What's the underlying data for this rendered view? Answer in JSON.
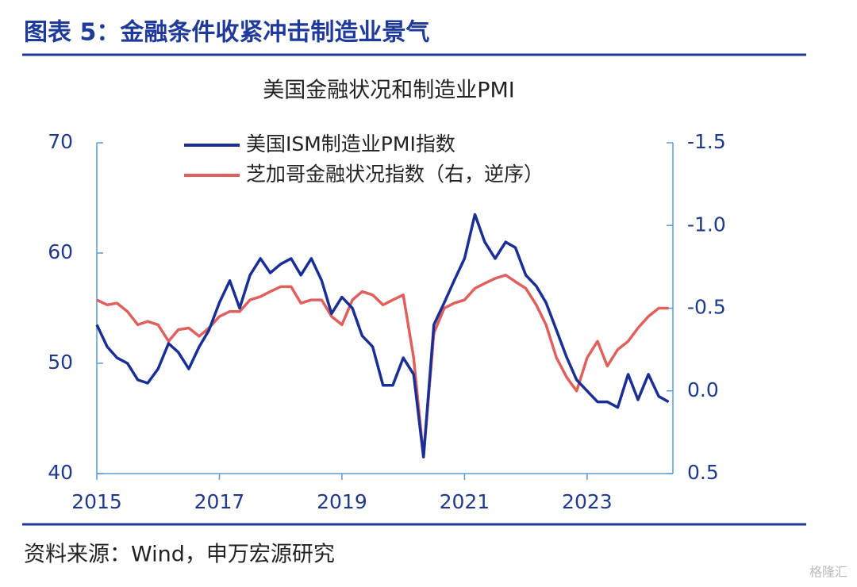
{
  "header": {
    "title": "图表 5：金融条件收紧冲击制造业景气"
  },
  "chart_data": {
    "type": "line",
    "title": "美国金融状况和制造业PMI",
    "x": [
      2015.0,
      2015.17,
      2015.33,
      2015.5,
      2015.67,
      2015.83,
      2016.0,
      2016.17,
      2016.33,
      2016.5,
      2016.67,
      2016.83,
      2017.0,
      2017.17,
      2017.33,
      2017.5,
      2017.67,
      2017.83,
      2018.0,
      2018.17,
      2018.33,
      2018.5,
      2018.67,
      2018.83,
      2019.0,
      2019.17,
      2019.33,
      2019.5,
      2019.67,
      2019.83,
      2020.0,
      2020.17,
      2020.33,
      2020.5,
      2020.67,
      2020.83,
      2021.0,
      2021.17,
      2021.33,
      2021.5,
      2021.67,
      2021.83,
      2022.0,
      2022.17,
      2022.33,
      2022.5,
      2022.67,
      2022.83,
      2023.0,
      2023.17,
      2023.33,
      2023.5,
      2023.67,
      2023.83,
      2024.0,
      2024.17,
      2024.33
    ],
    "series": [
      {
        "name": "美国ISM制造业PMI指数",
        "color": "#1a2f96",
        "axis": "y",
        "values": [
          53.5,
          51.5,
          50.5,
          50.0,
          48.5,
          48.2,
          49.5,
          51.8,
          51.0,
          49.5,
          51.5,
          53.0,
          55.5,
          57.5,
          55.0,
          58.0,
          59.5,
          58.2,
          59.0,
          59.5,
          58.0,
          59.5,
          57.5,
          54.5,
          56.0,
          55.0,
          52.5,
          51.5,
          48.0,
          48.0,
          50.5,
          49.0,
          41.5,
          53.5,
          55.5,
          57.5,
          59.5,
          63.5,
          61.0,
          59.5,
          61.0,
          60.5,
          58.0,
          57.0,
          55.5,
          53.0,
          50.5,
          48.5,
          47.5,
          46.5,
          46.5,
          46.0,
          49.0,
          46.7,
          49.0,
          47.0,
          46.5
        ]
      },
      {
        "name": "芝加哥金融状况指数（右，逆序）",
        "color": "#e0605e",
        "axis": "y2",
        "values": [
          -0.55,
          -0.52,
          -0.53,
          -0.48,
          -0.4,
          -0.42,
          -0.4,
          -0.3,
          -0.37,
          -0.38,
          -0.33,
          -0.38,
          -0.45,
          -0.48,
          -0.48,
          -0.55,
          -0.57,
          -0.6,
          -0.63,
          -0.63,
          -0.53,
          -0.55,
          -0.55,
          -0.45,
          -0.4,
          -0.55,
          -0.6,
          -0.58,
          -0.52,
          -0.55,
          -0.58,
          -0.2,
          0.4,
          -0.35,
          -0.5,
          -0.53,
          -0.55,
          -0.62,
          -0.65,
          -0.68,
          -0.7,
          -0.66,
          -0.62,
          -0.52,
          -0.4,
          -0.2,
          -0.08,
          0.0,
          -0.2,
          -0.3,
          -0.15,
          -0.25,
          -0.3,
          -0.38,
          -0.45,
          -0.5,
          -0.5
        ]
      }
    ],
    "xlim": [
      2015,
      2024.4
    ],
    "xticks": [
      2015,
      2017,
      2019,
      2021,
      2023
    ],
    "ylim": [
      40,
      70
    ],
    "yticks": [
      40,
      50,
      60,
      70
    ],
    "y2lim": [
      0.5,
      -1.5
    ],
    "y2ticks": [
      {
        "value": 0.5,
        "label": "0.5"
      },
      {
        "value": 0.0,
        "label": "0.0"
      },
      {
        "value": -0.5,
        "label": "-0.5"
      },
      {
        "value": -1.0,
        "label": "-1.0"
      },
      {
        "value": -1.5,
        "label": "-1.5"
      }
    ],
    "source": "资料来源：Wind，申万宏源研究"
  },
  "watermark": "格隆汇"
}
